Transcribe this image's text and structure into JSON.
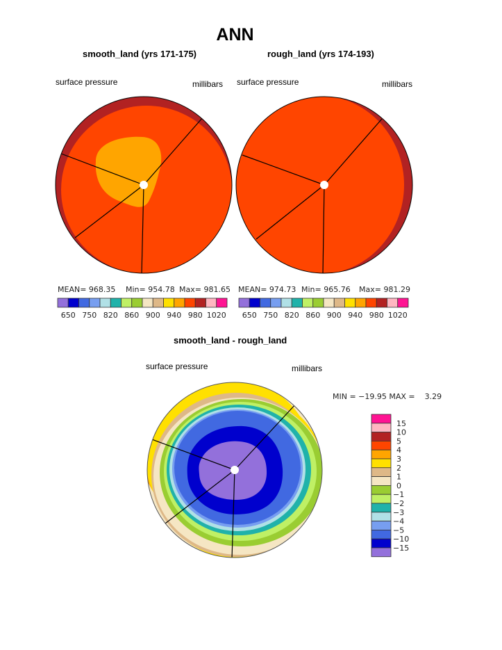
{
  "chart_data": {
    "type": "heatmap",
    "title": "ANN",
    "panels": [
      {
        "id": "smooth",
        "subtitle": "smooth_land (yrs 171-175)",
        "left_label": "surface pressure",
        "right_label": "millibars",
        "stats": {
          "mean": "MEAN= 968.35",
          "min": "Min= 954.78",
          "max": "Max= 981.65"
        }
      },
      {
        "id": "rough",
        "subtitle": "rough_land (yrs 174-193)",
        "left_label": "surface pressure",
        "right_label": "millibars",
        "stats": {
          "mean": "MEAN= 974.73",
          "min": "Min= 965.76",
          "max": "Max= 981.29"
        }
      },
      {
        "id": "diff",
        "subtitle": "smooth_land - rough_land",
        "left_label": "surface pressure",
        "right_label": "millibars",
        "stats": {
          "minmax": "MIN = −19.95 MAX =    3.29"
        }
      }
    ],
    "colorbar_main": {
      "colors": [
        "#9370DB",
        "#0000CD",
        "#4169E1",
        "#779EF0",
        "#B0E0E6",
        "#20B2AA",
        "#BFF065",
        "#9ACD32",
        "#F5E6C3",
        "#DEB887",
        "#FFE000",
        "#FFA500",
        "#FF4500",
        "#B22222",
        "#FFB6C1",
        "#FF1493"
      ],
      "labels": [
        "650",
        "750",
        "820",
        "860",
        "900",
        "940",
        "980",
        "1020"
      ]
    },
    "colorbar_diff": {
      "colors": [
        "#FF1493",
        "#FFB6C1",
        "#B22222",
        "#FF4500",
        "#FFA500",
        "#FFE000",
        "#DEB887",
        "#F5E6C3",
        "#9ACD32",
        "#BFF065",
        "#20B2AA",
        "#B0E0E6",
        "#779EF0",
        "#4169E1",
        "#0000CD",
        "#9370DB"
      ],
      "labels": [
        "15",
        "10",
        "5",
        "4",
        "3",
        "2",
        "1",
        "0",
        "−1",
        "−2",
        "−3",
        "−4",
        "−5",
        "−10",
        "−15"
      ]
    }
  }
}
